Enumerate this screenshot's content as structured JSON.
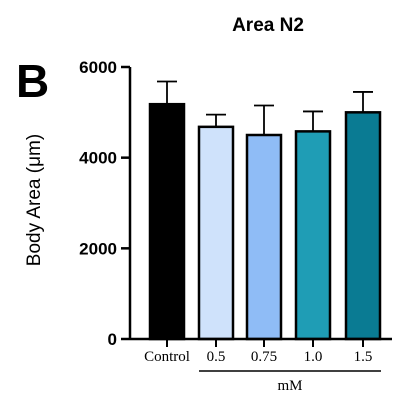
{
  "panel_letter": "B",
  "chart_data": {
    "type": "bar",
    "title": "Area N2",
    "ylabel": "Body Area (μm)",
    "xlabel": "",
    "ylim": [
      0,
      6000
    ],
    "yticks": [
      0,
      2000,
      4000,
      6000
    ],
    "categories": [
      "Control",
      "0.5",
      "0.75",
      "1.0",
      "1.5"
    ],
    "values": [
      5180,
      4680,
      4500,
      4580,
      5000
    ],
    "error_upper": [
      5680,
      4950,
      5150,
      5020,
      5450
    ],
    "colors": [
      "#000000",
      "#cfe2fb",
      "#8fbcf6",
      "#1f9db5",
      "#0a7b93"
    ],
    "group_label": "mM",
    "group_categories": [
      "0.5",
      "0.75",
      "1.0",
      "1.5"
    ]
  }
}
